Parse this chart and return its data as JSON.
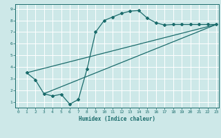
{
  "xlabel": "Humidex (Indice chaleur)",
  "bg_color": "#cde8e8",
  "grid_color": "#ffffff",
  "line_color": "#1a6b6b",
  "xlim": [
    -0.3,
    23.3
  ],
  "ylim": [
    0.5,
    9.4
  ],
  "xticks": [
    0,
    1,
    2,
    3,
    4,
    5,
    6,
    7,
    8,
    9,
    10,
    11,
    12,
    13,
    14,
    15,
    16,
    17,
    18,
    19,
    20,
    21,
    22,
    23
  ],
  "yticks": [
    1,
    2,
    3,
    4,
    5,
    6,
    7,
    8,
    9
  ],
  "line1_x": [
    1,
    2,
    3,
    4,
    5,
    6,
    7,
    8,
    9,
    10,
    11,
    12,
    13,
    14,
    15,
    16,
    17,
    18,
    19,
    20,
    21,
    22,
    23
  ],
  "line1_y": [
    3.5,
    2.9,
    1.7,
    1.5,
    1.65,
    0.8,
    1.2,
    3.8,
    7.0,
    8.0,
    8.3,
    8.6,
    8.8,
    8.85,
    8.2,
    7.8,
    7.6,
    7.65,
    7.65,
    7.65,
    7.65,
    7.65,
    7.65
  ],
  "line2_x": [
    1,
    23
  ],
  "line2_y": [
    3.5,
    7.65
  ],
  "line3_x": [
    3,
    23
  ],
  "line3_y": [
    1.7,
    7.65
  ],
  "marker": "D",
  "markersize": 2.0,
  "linewidth": 0.9,
  "tick_fontsize": 4.5,
  "xlabel_fontsize": 5.5
}
